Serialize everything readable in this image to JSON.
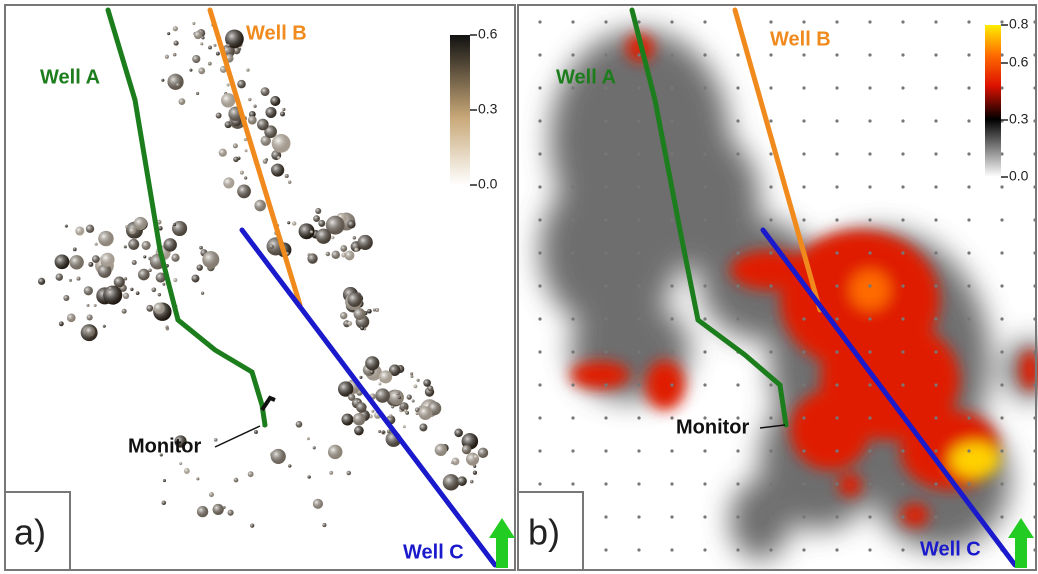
{
  "panels": [
    {
      "label": "a)",
      "monitor": "Monitor",
      "wells": [
        {
          "name": "Well A",
          "color": "#1c7d1c"
        },
        {
          "name": "Well B",
          "color": "#f08a1c"
        },
        {
          "name": "Well C",
          "color": "#1a1acc"
        }
      ],
      "colorbar": {
        "range": [
          0,
          0.6
        ],
        "ticks": [
          {
            "value": 0.6,
            "label": "0.6"
          },
          {
            "value": 0.3,
            "label": "0.3"
          },
          {
            "value": 0,
            "label": "0.0"
          }
        ]
      }
    },
    {
      "label": "b)",
      "monitor": "Monitor",
      "wells": [
        {
          "name": "Well A",
          "color": "#1c7d1c"
        },
        {
          "name": "Well B",
          "color": "#f08a1c"
        },
        {
          "name": "Well C",
          "color": "#1a1acc"
        }
      ],
      "colorbar": {
        "range": [
          0,
          0.8
        ],
        "ticks": [
          {
            "value": 0.8,
            "label": "0.8"
          },
          {
            "value": 0.6,
            "label": "0.6"
          },
          {
            "value": 0.3,
            "label": "0.3"
          },
          {
            "value": 0,
            "label": "0.0"
          }
        ]
      }
    }
  ]
}
